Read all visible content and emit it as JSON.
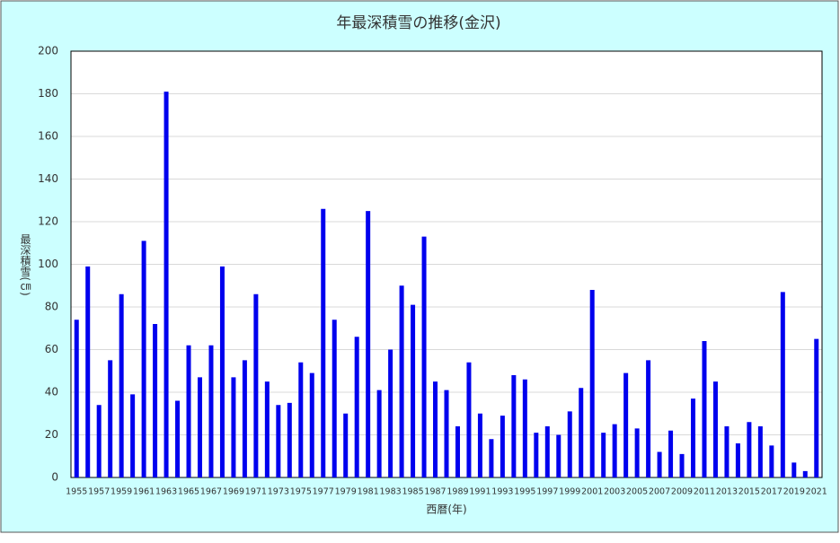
{
  "chart_data": {
    "type": "bar",
    "title": "年最深積雪の推移(金沢)",
    "y_label": "最深積雪(㎝)",
    "x_label": "西暦(年)",
    "categories": [
      "1955",
      null,
      "1957",
      null,
      "1959",
      null,
      "1961",
      null,
      "1963",
      null,
      "1965",
      null,
      "1967",
      null,
      "1969",
      null,
      "1971",
      null,
      "1973",
      null,
      "1975",
      null,
      "1977",
      null,
      "1979",
      null,
      "1981",
      null,
      "1983",
      null,
      "1985",
      null,
      "1987",
      null,
      "1989",
      null,
      "1991",
      null,
      "1993",
      null,
      "1995",
      null,
      "1997",
      null,
      "1999",
      null,
      "2001",
      null,
      "2003",
      null,
      "2005",
      null,
      "2007",
      null,
      "2009",
      null,
      "2011",
      null,
      "2013",
      null,
      "2015",
      null,
      "2017",
      null,
      "2019",
      null,
      "2021"
    ],
    "values": [
      74,
      99,
      34,
      55,
      86,
      39,
      111,
      72,
      181,
      36,
      62,
      47,
      62,
      99,
      47,
      55,
      86,
      45,
      34,
      35,
      54,
      49,
      126,
      74,
      30,
      66,
      125,
      41,
      60,
      90,
      81,
      113,
      45,
      41,
      24,
      54,
      30,
      18,
      29,
      48,
      46,
      21,
      24,
      20,
      31,
      42,
      88,
      21,
      25,
      49,
      23,
      55,
      12,
      22,
      11,
      37,
      64,
      45,
      24,
      16,
      26,
      24,
      15,
      87,
      7,
      3,
      65
    ],
    "color": "#0000ee",
    "ylim": [
      0,
      200
    ],
    "yticks": [
      0,
      20,
      40,
      60,
      80,
      100,
      120,
      140,
      160,
      180,
      200
    ],
    "grid": true
  }
}
